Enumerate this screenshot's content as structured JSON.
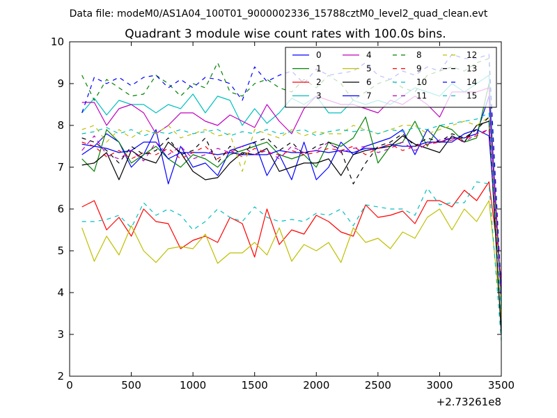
{
  "figure": {
    "suptitle": "Data file: modeM0/AS1A04_100T01_9000002336_15788cztM0_level2_quad_clean.evt"
  },
  "chart_data": {
    "type": "line",
    "title": "Quadrant 3 module wise count rates with 100.0s bins.",
    "xlabel": "",
    "ylabel": "",
    "x_offset_label": "+2.73261e8",
    "xlim": [
      0,
      3500
    ],
    "ylim": [
      2,
      10
    ],
    "x_ticks": [
      0,
      500,
      1000,
      1500,
      2000,
      2500,
      3000,
      3500
    ],
    "y_ticks": [
      2,
      3,
      4,
      5,
      6,
      7,
      8,
      9,
      10
    ],
    "grid": false,
    "legend_position": "top-right",
    "legend_columns": 4,
    "x": [
      100,
      200,
      300,
      400,
      500,
      600,
      700,
      800,
      900,
      1000,
      1100,
      1200,
      1300,
      1400,
      1500,
      1600,
      1700,
      1800,
      1900,
      2000,
      2100,
      2200,
      2300,
      2400,
      2500,
      2600,
      2700,
      2800,
      2900,
      3000,
      3100,
      3200,
      3300,
      3400,
      3500
    ],
    "series": [
      {
        "name": "0",
        "color": "#0000ff",
        "dash": "solid",
        "values": [
          7.3,
          7.5,
          7.8,
          7.6,
          7.0,
          7.3,
          7.9,
          6.6,
          7.5,
          7.0,
          7.1,
          6.8,
          7.4,
          7.5,
          7.6,
          6.8,
          7.3,
          6.7,
          7.6,
          6.7,
          7.0,
          7.6,
          7.3,
          7.5,
          7.6,
          7.7,
          7.9,
          7.3,
          7.9,
          7.6,
          7.7,
          7.7,
          7.8,
          8.7,
          3.7
        ]
      },
      {
        "name": "1",
        "color": "#008000",
        "dash": "solid",
        "values": [
          7.2,
          6.9,
          7.9,
          7.6,
          7.1,
          7.3,
          7.5,
          7.2,
          7.0,
          7.3,
          7.2,
          7.0,
          7.3,
          7.4,
          7.5,
          7.6,
          7.3,
          7.2,
          7.3,
          7.0,
          7.6,
          7.5,
          7.7,
          8.2,
          7.1,
          7.5,
          7.6,
          8.1,
          7.5,
          8.0,
          7.9,
          7.6,
          7.7,
          9.0,
          3.9
        ]
      },
      {
        "name": "2",
        "color": "#ff0000",
        "dash": "solid",
        "values": [
          6.05,
          6.2,
          5.5,
          5.8,
          5.35,
          6.0,
          5.7,
          5.65,
          5.05,
          5.25,
          5.35,
          5.2,
          5.8,
          5.65,
          4.85,
          6.0,
          5.15,
          5.5,
          5.4,
          5.85,
          5.7,
          5.45,
          5.35,
          6.1,
          5.8,
          5.85,
          5.95,
          5.65,
          6.2,
          6.2,
          6.05,
          6.45,
          6.2,
          6.65,
          4.3
        ]
      },
      {
        "name": "3",
        "color": "#00bfbf",
        "dash": "solid",
        "values": [
          8.3,
          8.65,
          8.25,
          8.6,
          8.5,
          8.5,
          8.3,
          8.5,
          8.4,
          8.75,
          8.3,
          8.7,
          8.6,
          8.0,
          8.4,
          8.05,
          8.3,
          8.65,
          8.5,
          8.7,
          8.3,
          8.3,
          8.6,
          8.5,
          8.6,
          8.5,
          8.7,
          8.9,
          8.8,
          8.7,
          9.0,
          8.8,
          9.0,
          9.2,
          3.6
        ]
      },
      {
        "name": "4",
        "color": "#bf00bf",
        "dash": "solid",
        "values": [
          8.55,
          8.55,
          8.0,
          8.4,
          8.5,
          8.3,
          7.8,
          8.0,
          8.3,
          8.3,
          8.1,
          8.0,
          8.25,
          8.1,
          7.95,
          8.5,
          8.1,
          7.8,
          8.4,
          8.7,
          8.6,
          8.5,
          8.5,
          8.4,
          8.3,
          8.6,
          8.5,
          8.7,
          8.5,
          8.2,
          8.8,
          8.8,
          8.8,
          8.9,
          3.8
        ]
      },
      {
        "name": "5",
        "color": "#bfbf00",
        "dash": "solid",
        "values": [
          5.55,
          4.75,
          5.35,
          4.9,
          5.6,
          5.0,
          4.72,
          5.05,
          5.1,
          5.05,
          5.4,
          4.7,
          4.95,
          4.95,
          5.2,
          4.9,
          5.55,
          4.75,
          5.15,
          5.0,
          5.2,
          4.72,
          5.55,
          5.2,
          5.3,
          5.05,
          5.45,
          5.3,
          5.8,
          6.0,
          5.5,
          6.0,
          5.7,
          6.2,
          3.4
        ]
      },
      {
        "name": "6",
        "color": "#000000",
        "dash": "solid",
        "values": [
          7.05,
          7.1,
          7.35,
          6.7,
          7.4,
          7.2,
          7.1,
          7.6,
          7.35,
          6.9,
          6.7,
          6.75,
          7.1,
          7.35,
          7.3,
          7.45,
          6.9,
          7.0,
          7.1,
          7.1,
          7.2,
          6.8,
          7.3,
          7.4,
          7.45,
          7.5,
          7.75,
          7.55,
          7.45,
          7.35,
          7.75,
          7.6,
          8.0,
          8.1,
          3.0
        ]
      },
      {
        "name": "7",
        "color": "#0000ff",
        "dash": "solid",
        "values": [
          7.55,
          7.5,
          7.45,
          7.35,
          7.4,
          7.6,
          7.6,
          7.2,
          7.35,
          7.35,
          7.35,
          7.3,
          7.35,
          7.3,
          7.3,
          7.3,
          7.4,
          7.35,
          7.35,
          7.4,
          7.35,
          7.4,
          7.35,
          7.45,
          7.45,
          7.55,
          7.5,
          7.5,
          7.6,
          7.6,
          7.6,
          7.8,
          7.9,
          7.75,
          4.0
        ]
      },
      {
        "name": "8",
        "color": "#008000",
        "dash": "dashed",
        "values": [
          9.2,
          8.6,
          9.1,
          8.9,
          8.7,
          8.75,
          9.2,
          9.0,
          8.7,
          9.0,
          8.9,
          9.5,
          8.8,
          8.7,
          9.0,
          9.1,
          8.9,
          8.8,
          9.1,
          8.9,
          9.2,
          9.0,
          8.6,
          8.8,
          9.0,
          9.1,
          8.9,
          8.8,
          9.2,
          9.3,
          9.4,
          9.3,
          9.5,
          9.6,
          3.9
        ]
      },
      {
        "name": "9",
        "color": "#ff0000",
        "dash": "dashed",
        "values": [
          7.6,
          7.5,
          7.25,
          7.4,
          7.2,
          7.35,
          7.3,
          7.45,
          7.2,
          7.35,
          7.5,
          7.2,
          7.4,
          7.25,
          7.45,
          7.35,
          7.3,
          7.4,
          7.3,
          7.35,
          7.45,
          7.4,
          7.5,
          7.3,
          7.45,
          7.55,
          7.4,
          7.5,
          7.55,
          7.6,
          7.65,
          7.7,
          7.75,
          7.9,
          4.1
        ]
      },
      {
        "name": "10",
        "color": "#00bfbf",
        "dash": "dashed",
        "values": [
          5.7,
          5.7,
          5.75,
          5.85,
          5.55,
          6.15,
          5.85,
          6.0,
          5.85,
          5.5,
          5.7,
          6.0,
          5.8,
          5.7,
          6.05,
          5.8,
          5.7,
          5.75,
          5.7,
          5.9,
          5.85,
          6.0,
          5.6,
          6.1,
          6.05,
          6.0,
          6.0,
          5.85,
          6.5,
          6.1,
          6.15,
          6.15,
          6.65,
          6.6,
          2.85
        ]
      },
      {
        "name": "11",
        "color": "#bf00bf",
        "dash": "dashed",
        "values": [
          7.4,
          7.75,
          7.3,
          7.2,
          7.4,
          7.15,
          7.6,
          7.3,
          7.5,
          7.2,
          7.3,
          7.45,
          7.35,
          7.5,
          7.3,
          7.4,
          7.2,
          7.5,
          7.35,
          7.4,
          7.6,
          7.35,
          7.45,
          7.5,
          7.35,
          7.45,
          7.6,
          7.4,
          7.55,
          7.65,
          7.7,
          7.6,
          7.8,
          7.9,
          3.9
        ]
      },
      {
        "name": "12",
        "color": "#bfbf00",
        "dash": "dashed",
        "values": [
          7.9,
          8.0,
          7.6,
          7.9,
          7.7,
          7.9,
          7.8,
          8.0,
          7.7,
          7.8,
          7.9,
          7.75,
          7.8,
          6.9,
          7.9,
          7.8,
          7.7,
          7.9,
          7.75,
          7.85,
          7.8,
          7.8,
          8.0,
          7.9,
          7.8,
          7.9,
          8.0,
          8.0,
          7.8,
          7.9,
          8.0,
          8.1,
          8.0,
          8.2,
          3.7
        ]
      },
      {
        "name": "13",
        "color": "#000000",
        "dash": "dashed",
        "values": [
          7.7,
          7.6,
          7.4,
          7.1,
          7.5,
          7.3,
          7.4,
          7.7,
          7.3,
          7.4,
          7.7,
          7.1,
          7.5,
          7.3,
          7.6,
          7.7,
          7.4,
          7.6,
          7.3,
          7.5,
          7.6,
          7.4,
          6.6,
          7.1,
          7.5,
          7.6,
          7.8,
          7.5,
          7.7,
          7.6,
          7.8,
          7.7,
          7.9,
          8.2,
          3.0
        ]
      },
      {
        "name": "14",
        "color": "#0000ff",
        "dash": "dashed",
        "values": [
          8.3,
          9.15,
          9.0,
          9.15,
          8.95,
          9.15,
          9.2,
          8.9,
          9.1,
          8.9,
          9.15,
          9.1,
          9.0,
          8.6,
          9.4,
          9.05,
          9.2,
          9.3,
          9.0,
          9.35,
          9.2,
          9.25,
          9.3,
          9.5,
          9.2,
          9.1,
          9.3,
          9.2,
          9.4,
          9.3,
          9.7,
          9.6,
          9.6,
          9.7,
          4.0
        ]
      },
      {
        "name": "15",
        "color": "#00bfbf",
        "dash": "dashed",
        "values": [
          7.8,
          7.85,
          7.95,
          7.8,
          7.9,
          7.75,
          7.85,
          7.8,
          7.9,
          7.8,
          7.85,
          7.9,
          7.75,
          7.85,
          7.8,
          7.9,
          7.8,
          7.85,
          7.9,
          7.75,
          7.85,
          7.9,
          7.85,
          7.9,
          7.8,
          7.9,
          7.85,
          7.95,
          7.9,
          8.0,
          8.05,
          8.1,
          8.15,
          8.3,
          3.5
        ]
      }
    ]
  }
}
